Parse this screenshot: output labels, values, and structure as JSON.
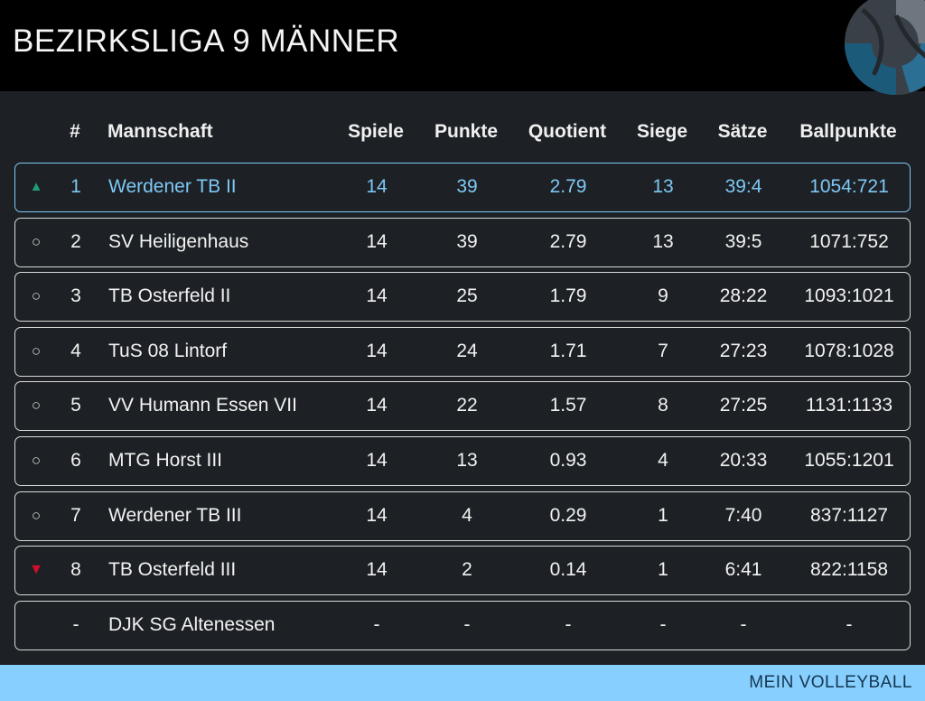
{
  "header": {
    "title": "BEZIRKSLIGA 9 MÄNNER"
  },
  "table": {
    "columns": [
      "#",
      "Mannschaft",
      "Spiele",
      "Punkte",
      "Quotient",
      "Siege",
      "Sätze",
      "Ballpunkte"
    ],
    "rows": [
      {
        "indicator": "▲",
        "indicator_type": "up",
        "rank": "1",
        "team": "Werdener TB II",
        "spiele": "14",
        "punkte": "39",
        "quotient": "2.79",
        "siege": "13",
        "saetze": "39:4",
        "ballpunkte": "1054:721"
      },
      {
        "indicator": "○",
        "indicator_type": "none",
        "rank": "2",
        "team": "SV Heiligenhaus",
        "spiele": "14",
        "punkte": "39",
        "quotient": "2.79",
        "siege": "13",
        "saetze": "39:5",
        "ballpunkte": "1071:752"
      },
      {
        "indicator": "○",
        "indicator_type": "none",
        "rank": "3",
        "team": "TB Osterfeld II",
        "spiele": "14",
        "punkte": "25",
        "quotient": "1.79",
        "siege": "9",
        "saetze": "28:22",
        "ballpunkte": "1093:1021"
      },
      {
        "indicator": "○",
        "indicator_type": "none",
        "rank": "4",
        "team": "TuS 08 Lintorf",
        "spiele": "14",
        "punkte": "24",
        "quotient": "1.71",
        "siege": "7",
        "saetze": "27:23",
        "ballpunkte": "1078:1028"
      },
      {
        "indicator": "○",
        "indicator_type": "none",
        "rank": "5",
        "team": "VV Humann Essen VII",
        "spiele": "14",
        "punkte": "22",
        "quotient": "1.57",
        "siege": "8",
        "saetze": "27:25",
        "ballpunkte": "1131:1133"
      },
      {
        "indicator": "○",
        "indicator_type": "none",
        "rank": "6",
        "team": "MTG Horst III",
        "spiele": "14",
        "punkte": "13",
        "quotient": "0.93",
        "siege": "4",
        "saetze": "20:33",
        "ballpunkte": "1055:1201"
      },
      {
        "indicator": "○",
        "indicator_type": "none",
        "rank": "7",
        "team": "Werdener TB III",
        "spiele": "14",
        "punkte": "4",
        "quotient": "0.29",
        "siege": "1",
        "saetze": "7:40",
        "ballpunkte": "837:1127"
      },
      {
        "indicator": "▼",
        "indicator_type": "down",
        "rank": "8",
        "team": "TB Osterfeld III",
        "spiele": "14",
        "punkte": "2",
        "quotient": "0.14",
        "siege": "1",
        "saetze": "6:41",
        "ballpunkte": "822:1158"
      },
      {
        "indicator": "",
        "indicator_type": "none",
        "rank": "-",
        "team": "DJK SG Altenessen",
        "spiele": "-",
        "punkte": "-",
        "quotient": "-",
        "siege": "-",
        "saetze": "-",
        "ballpunkte": "-"
      }
    ]
  },
  "footer": {
    "label": "MEIN VOLLEYBALL"
  },
  "colors": {
    "background": "#1d2125",
    "header": "#000000",
    "highlight": "#7ec8f5",
    "up": "#1f9d7a",
    "down": "#d0102a",
    "footer": "#87cfff",
    "footer_text": "#15364f"
  },
  "icons": {
    "logo": "volleyball-icon"
  }
}
